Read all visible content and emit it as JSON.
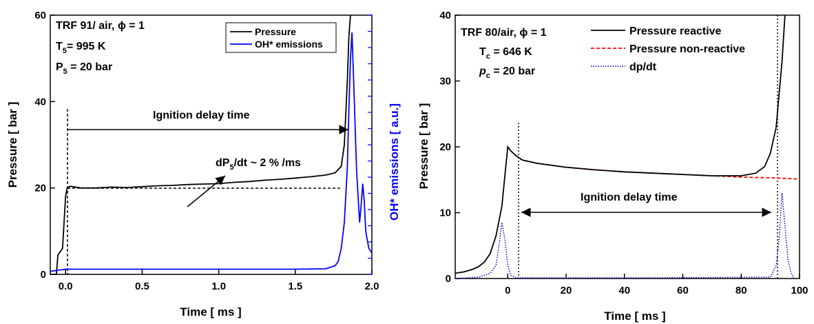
{
  "chart_data": [
    {
      "type": "line",
      "xlabel": "Time [ ms ]",
      "ylabel": "Pressure [ bar ]",
      "ylabel_right": "OH* emissions [ a.u.]",
      "xlim": [
        -0.1,
        2.0
      ],
      "ylim": [
        0,
        60
      ],
      "x_ticks": [
        "0.0",
        "0.5",
        "1.0",
        "1.5",
        "2.0"
      ],
      "x_tick_values": [
        0.0,
        0.5,
        1.0,
        1.5,
        2.0
      ],
      "y_ticks": [
        "0",
        "20",
        "40",
        "60"
      ],
      "y_tick_values": [
        0,
        20,
        40,
        60
      ],
      "grid": false,
      "legend_position": "top-right",
      "conditions": {
        "line1_prefix": "TRF 91/ air, ",
        "phi_symbol": "ϕ",
        "line1_suffix": " = 1",
        "T_symbol": "T",
        "T_sub": "5",
        "T_value": "= 995 K",
        "P_symbol": "P",
        "P_sub": "5",
        "P_value": " = 20 bar"
      },
      "annotations": {
        "ignition_delay": "Ignition delay time",
        "rate_prefix": "dP",
        "rate_sub": "5",
        "rate_suffix": "/dt ~ 2 % /ms"
      },
      "series": [
        {
          "name": "Pressure",
          "color": "#000000",
          "x": [
            -0.1,
            -0.06,
            -0.05,
            -0.04,
            -0.02,
            -0.01,
            0.0,
            0.01,
            0.03,
            0.1,
            0.2,
            0.3,
            0.4,
            0.5,
            0.6,
            0.7,
            0.8,
            0.9,
            1.0,
            1.1,
            1.2,
            1.3,
            1.4,
            1.5,
            1.6,
            1.7,
            1.76,
            1.8,
            1.82,
            1.84,
            1.85,
            1.86
          ],
          "y": [
            0,
            0,
            4.5,
            5,
            6,
            12,
            18,
            20,
            20.4,
            20,
            20,
            20.2,
            20.1,
            20.3,
            20.5,
            20.6,
            20.8,
            20.9,
            21,
            21.3,
            21.5,
            21.8,
            22,
            22.3,
            22.6,
            23,
            23.5,
            25,
            30,
            45,
            55,
            60
          ]
        },
        {
          "name": "OH* emissions",
          "color": "#0000ff",
          "x": [
            -0.1,
            0.0,
            0.5,
            1.0,
            1.5,
            1.7,
            1.76,
            1.78,
            1.8,
            1.82,
            1.84,
            1.85,
            1.86,
            1.87,
            1.88,
            1.9,
            1.92,
            1.93,
            1.94,
            1.95,
            1.96,
            1.97,
            1.98,
            2.0
          ],
          "y": [
            0.7,
            1.2,
            1.2,
            1.2,
            1.2,
            1.3,
            2,
            3,
            6,
            12,
            25,
            38,
            50,
            56,
            46,
            24,
            12,
            16,
            21,
            17,
            10,
            8,
            6,
            5
          ]
        }
      ]
    },
    {
      "type": "line",
      "xlabel": "Time [ ms ]",
      "ylabel": "Pressure [ bar ]",
      "xlim": [
        -18,
        100
      ],
      "ylim": [
        0,
        40
      ],
      "x_ticks": [
        "0",
        "20",
        "40",
        "60",
        "80",
        "100"
      ],
      "x_tick_values": [
        0,
        20,
        40,
        60,
        80,
        100
      ],
      "y_ticks": [
        "0",
        "10",
        "20",
        "30",
        "40"
      ],
      "y_tick_values": [
        0,
        10,
        20,
        30,
        40
      ],
      "grid": false,
      "legend_position": "top-right",
      "conditions": {
        "line1_prefix": "TRF 80/air, ",
        "phi_symbol": "ϕ",
        "line1_suffix": " = 1",
        "T_symbol": "T",
        "T_sub": "c",
        "T_value": " = 646 K",
        "P_symbol": "p",
        "P_sub": "c",
        "P_value": " = 20 bar"
      },
      "annotations": {
        "ignition_delay": "Ignition delay time"
      },
      "series": [
        {
          "name": "Pressure reactive",
          "color": "#000000",
          "x": [
            -18,
            -15,
            -12,
            -10,
            -8,
            -6,
            -4,
            -2,
            0,
            1,
            3,
            5,
            10,
            20,
            30,
            40,
            50,
            60,
            70,
            80,
            85,
            88,
            90,
            92,
            93,
            94,
            95
          ],
          "y": [
            0.8,
            1.0,
            1.4,
            1.8,
            2.5,
            3.8,
            6.5,
            11,
            20,
            19.4,
            18.6,
            18,
            17.5,
            16.9,
            16.5,
            16.2,
            16,
            15.8,
            15.6,
            15.6,
            16,
            17,
            19,
            23,
            28,
            33,
            40
          ]
        },
        {
          "name": "Pressure non-reactive",
          "color": "#ff0000",
          "x": [
            0,
            1,
            3,
            5,
            10,
            20,
            30,
            40,
            50,
            60,
            70,
            80,
            90,
            100
          ],
          "y": [
            20,
            19.4,
            18.6,
            18,
            17.5,
            16.9,
            16.5,
            16.2,
            16,
            15.8,
            15.6,
            15.4,
            15.3,
            15.1
          ]
        },
        {
          "name": "dp/dt",
          "color": "#0000cc",
          "x": [
            -18,
            -10,
            -6,
            -4,
            -3,
            -2,
            -1,
            0,
            1,
            3,
            10,
            50,
            90,
            92,
            93,
            94,
            95,
            96,
            97,
            98
          ],
          "y": [
            0,
            0.2,
            0.8,
            2,
            5,
            8.5,
            6,
            2,
            0.5,
            0.1,
            0.1,
            0.1,
            0.2,
            2,
            6,
            13,
            8,
            3,
            1,
            0.1
          ]
        }
      ]
    }
  ]
}
